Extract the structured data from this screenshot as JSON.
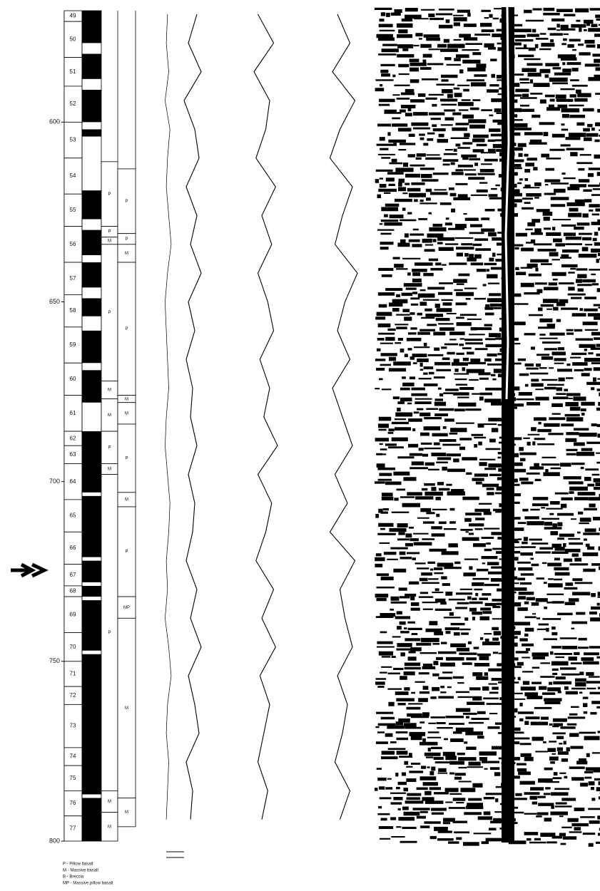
{
  "depth_axis": {
    "ylim": [
      569,
      800
    ],
    "yticks": [
      600,
      650,
      700,
      750,
      800
    ]
  },
  "cores": [
    {
      "label": "49",
      "top": 569,
      "bottom": 572
    },
    {
      "label": "50",
      "top": 572,
      "bottom": 582
    },
    {
      "label": "51",
      "top": 582,
      "bottom": 590
    },
    {
      "label": "52",
      "top": 590,
      "bottom": 600
    },
    {
      "label": "53",
      "top": 600,
      "bottom": 610
    },
    {
      "label": "54",
      "top": 610,
      "bottom": 620
    },
    {
      "label": "55",
      "top": 620,
      "bottom": 629
    },
    {
      "label": "56",
      "top": 629,
      "bottom": 639
    },
    {
      "label": "57",
      "top": 639,
      "bottom": 648
    },
    {
      "label": "58",
      "top": 648,
      "bottom": 657
    },
    {
      "label": "59",
      "top": 657,
      "bottom": 667
    },
    {
      "label": "60",
      "top": 667,
      "bottom": 676
    },
    {
      "label": "61",
      "top": 676,
      "bottom": 686
    },
    {
      "label": "62",
      "top": 686,
      "bottom": 690
    },
    {
      "label": "63",
      "top": 690,
      "bottom": 695
    },
    {
      "label": "64",
      "top": 695,
      "bottom": 705
    },
    {
      "label": "65",
      "top": 705,
      "bottom": 714
    },
    {
      "label": "66",
      "top": 714,
      "bottom": 723
    },
    {
      "label": "67",
      "top": 723,
      "bottom": 729
    },
    {
      "label": "68",
      "top": 729,
      "bottom": 732
    },
    {
      "label": "69",
      "top": 732,
      "bottom": 742
    },
    {
      "label": "70",
      "top": 742,
      "bottom": 750
    },
    {
      "label": "71",
      "top": 750,
      "bottom": 757
    },
    {
      "label": "72",
      "top": 757,
      "bottom": 762
    },
    {
      "label": "73",
      "top": 762,
      "bottom": 774
    },
    {
      "label": "74",
      "top": 774,
      "bottom": 779
    },
    {
      "label": "75",
      "top": 779,
      "bottom": 786
    },
    {
      "label": "76",
      "top": 786,
      "bottom": 793
    },
    {
      "label": "77",
      "top": 793,
      "bottom": 800
    }
  ],
  "recovery": [
    [
      569,
      578
    ],
    [
      581,
      588
    ],
    [
      591,
      600
    ],
    [
      602,
      604
    ],
    [
      619,
      627
    ],
    [
      630,
      637
    ],
    [
      639,
      646
    ],
    [
      649,
      654
    ],
    [
      658,
      667
    ],
    [
      669,
      678
    ],
    [
      686,
      703
    ],
    [
      704,
      721
    ],
    [
      722,
      728
    ],
    [
      729,
      732
    ],
    [
      733,
      747
    ],
    [
      748,
      787
    ],
    [
      788,
      800
    ]
  ],
  "lithology_a": [
    {
      "label": "P",
      "top": 611,
      "bottom": 629
    },
    {
      "label": "P",
      "top": 629,
      "bottom": 632
    },
    {
      "label": "M",
      "top": 632,
      "bottom": 634
    },
    {
      "label": "P",
      "top": 634,
      "bottom": 672
    },
    {
      "label": "M",
      "top": 672,
      "bottom": 677
    },
    {
      "label": "M",
      "top": 677,
      "bottom": 686
    },
    {
      "label": "P",
      "top": 686,
      "bottom": 695
    },
    {
      "label": "M",
      "top": 695,
      "bottom": 698
    },
    {
      "label": "P",
      "top": 698,
      "bottom": 786
    },
    {
      "label": "M",
      "top": 786,
      "bottom": 792
    },
    {
      "label": "M",
      "top": 792,
      "bottom": 800
    }
  ],
  "lithology_b": [
    {
      "label": "P",
      "top": 613,
      "bottom": 631
    },
    {
      "label": "P",
      "top": 631,
      "bottom": 634
    },
    {
      "label": "M",
      "top": 634,
      "bottom": 639
    },
    {
      "label": "P",
      "top": 639,
      "bottom": 676
    },
    {
      "label": "M",
      "top": 676,
      "bottom": 678
    },
    {
      "label": "M",
      "top": 678,
      "bottom": 684
    },
    {
      "label": "P",
      "top": 684,
      "bottom": 703
    },
    {
      "label": "M",
      "top": 703,
      "bottom": 707
    },
    {
      "label": "P",
      "top": 707,
      "bottom": 732
    },
    {
      "label": "MP",
      "top": 732,
      "bottom": 738
    },
    {
      "label": "M",
      "top": 738,
      "bottom": 788
    },
    {
      "label": "M",
      "top": 788,
      "bottom": 796
    }
  ],
  "logs": {
    "depths": [
      570,
      578,
      586,
      594,
      602,
      610,
      618,
      626,
      634,
      642,
      650,
      658,
      666,
      674,
      682,
      690,
      698,
      706,
      714,
      722,
      730,
      738,
      746,
      754,
      762,
      770,
      778,
      786,
      794
    ],
    "curves": [
      [
        20,
        15,
        25,
        10,
        30,
        20,
        15,
        25,
        35,
        20,
        10,
        15,
        20,
        25,
        15,
        10,
        20,
        30,
        25,
        15,
        20,
        10,
        25,
        35,
        20,
        15,
        25,
        20,
        15
      ],
      [
        60,
        40,
        70,
        30,
        55,
        65,
        35,
        60,
        45,
        70,
        40,
        55,
        35,
        50,
        45,
        60,
        40,
        55,
        50,
        35,
        60,
        45,
        70,
        40,
        55,
        65,
        35,
        50,
        45
      ],
      [
        30,
        70,
        20,
        60,
        50,
        25,
        75,
        40,
        65,
        30,
        55,
        70,
        35,
        60,
        45,
        80,
        30,
        65,
        50,
        25,
        70,
        40,
        75,
        35,
        60,
        45,
        30,
        55,
        40
      ],
      [
        40,
        65,
        30,
        75,
        45,
        25,
        70,
        50,
        35,
        80,
        55,
        40,
        65,
        30,
        50,
        70,
        35,
        60,
        25,
        75,
        45,
        55,
        70,
        40,
        60,
        50,
        35,
        65,
        45
      ]
    ]
  },
  "legend": [
    "P  -  Pillow basalt",
    "M  -  Massive basalt",
    "B  -  Breccia",
    "MP  -  Massive pillow basalt"
  ]
}
